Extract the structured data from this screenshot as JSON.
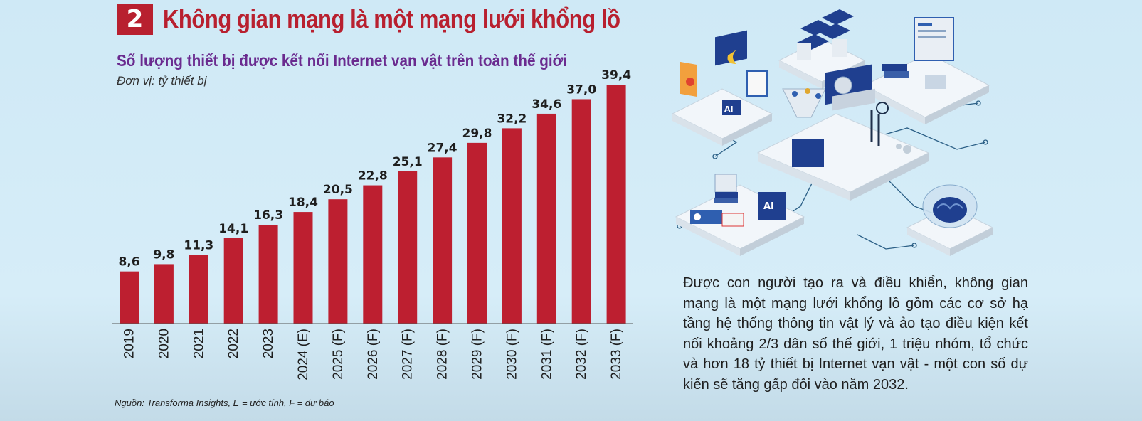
{
  "header": {
    "number": "2",
    "title": "Không gian mạng là một mạng lưới khổng lồ"
  },
  "chart": {
    "title": "Số lượng thiết bị được kết nối Internet vạn vật trên toàn thế giới",
    "unit": "Đơn vị: tỷ thiết bị",
    "source": "Nguồn: Transforma Insights, E = ước tính, F = dự báo"
  },
  "chart_data": {
    "type": "bar",
    "title": "Số lượng thiết bị được kết nối Internet vạn vật trên toàn thế giới",
    "ylabel": "Đơn vị: tỷ thiết bị",
    "categories": [
      "2019",
      "2020",
      "2021",
      "2022",
      "2023",
      "2024 (E)",
      "2025 (F)",
      "2026 (F)",
      "2027 (F)",
      "2028 (F)",
      "2029 (F)",
      "2030 (F)",
      "2031 (F)",
      "2032 (F)",
      "2033 (F)"
    ],
    "values": [
      8.6,
      9.8,
      11.3,
      14.1,
      16.3,
      18.4,
      20.5,
      22.8,
      25.1,
      27.4,
      29.8,
      32.2,
      34.6,
      37.0,
      39.4
    ],
    "value_labels": [
      "8,6",
      "9,8",
      "11,3",
      "14,1",
      "16,3",
      "18,4",
      "20,5",
      "22,8",
      "25,1",
      "27,4",
      "29,8",
      "32,2",
      "34,6",
      "37,0",
      "39,4"
    ],
    "ylim": [
      0,
      39.4
    ],
    "grid": false,
    "colors": {
      "bar": "#bd1f30"
    }
  },
  "description": "Được con người tạo ra và điều khiển, không gian mạng là một mạng lưới khổng lồ gồm các cơ sở hạ tầng hệ thống thông tin vật lý và ảo tạo điều kiện kết nối khoảng 2/3 dân số thế giới, 1 triệu nhóm, tổ chức và hơn 18 tỷ thiết bị Internet vạn vật - một con số dự kiến sẽ tăng gấp đôi vào năm 2032.",
  "illustration": {
    "ai_label_1": "AI",
    "ai_label_2": "AI"
  },
  "colors": {
    "accent": "#b8202f",
    "subtitle": "#6a2b8f",
    "background": "#d2ebf7"
  }
}
